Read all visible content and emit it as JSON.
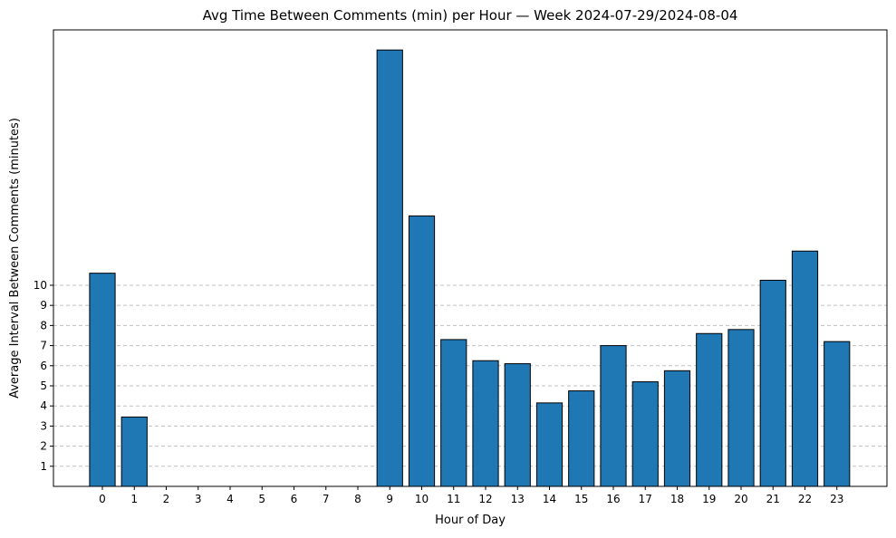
{
  "chart_data": {
    "type": "bar",
    "title": "Avg Time Between Comments (min) per Hour — Week 2024-07-29/2024-08-04",
    "xlabel": "Hour of Day",
    "ylabel": "Average Interval Between Comments (minutes)",
    "categories": [
      "0",
      "1",
      "2",
      "3",
      "4",
      "5",
      "6",
      "7",
      "8",
      "9",
      "10",
      "11",
      "12",
      "13",
      "14",
      "15",
      "16",
      "17",
      "18",
      "19",
      "20",
      "21",
      "22",
      "23"
    ],
    "values": [
      10.6,
      3.45,
      0,
      0,
      0,
      0,
      0,
      0,
      0,
      21.7,
      13.45,
      7.3,
      6.25,
      6.1,
      4.15,
      4.75,
      7.0,
      5.2,
      5.75,
      7.6,
      7.8,
      10.25,
      11.7,
      7.2
    ],
    "yticks": [
      1,
      2,
      3,
      4,
      5,
      6,
      7,
      8,
      9,
      10
    ],
    "ylim": [
      0,
      22.7
    ],
    "grid": "y-dashed",
    "bar_color": "#1f77b4",
    "edge_color": "#000000"
  }
}
